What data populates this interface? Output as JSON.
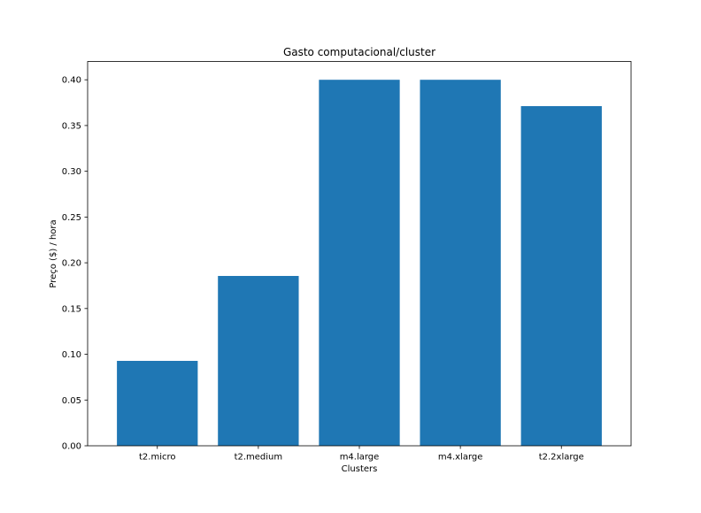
{
  "chart_data": {
    "type": "bar",
    "title": "Gasto computacional/cluster",
    "xlabel": "Clusters",
    "ylabel": "Preço ($) /  hora",
    "categories": [
      "t2.micro",
      "t2.medium",
      "m4.large",
      "m4.xlarge",
      "t2.2xlarge"
    ],
    "values": [
      0.0928,
      0.1856,
      0.4,
      0.4,
      0.3712
    ],
    "ylim": [
      0,
      0.42
    ],
    "yticks": [
      "0.00",
      "0.05",
      "0.10",
      "0.15",
      "0.20",
      "0.25",
      "0.30",
      "0.35",
      "0.40"
    ],
    "grid": false,
    "bar_color": "#1f77b4"
  }
}
